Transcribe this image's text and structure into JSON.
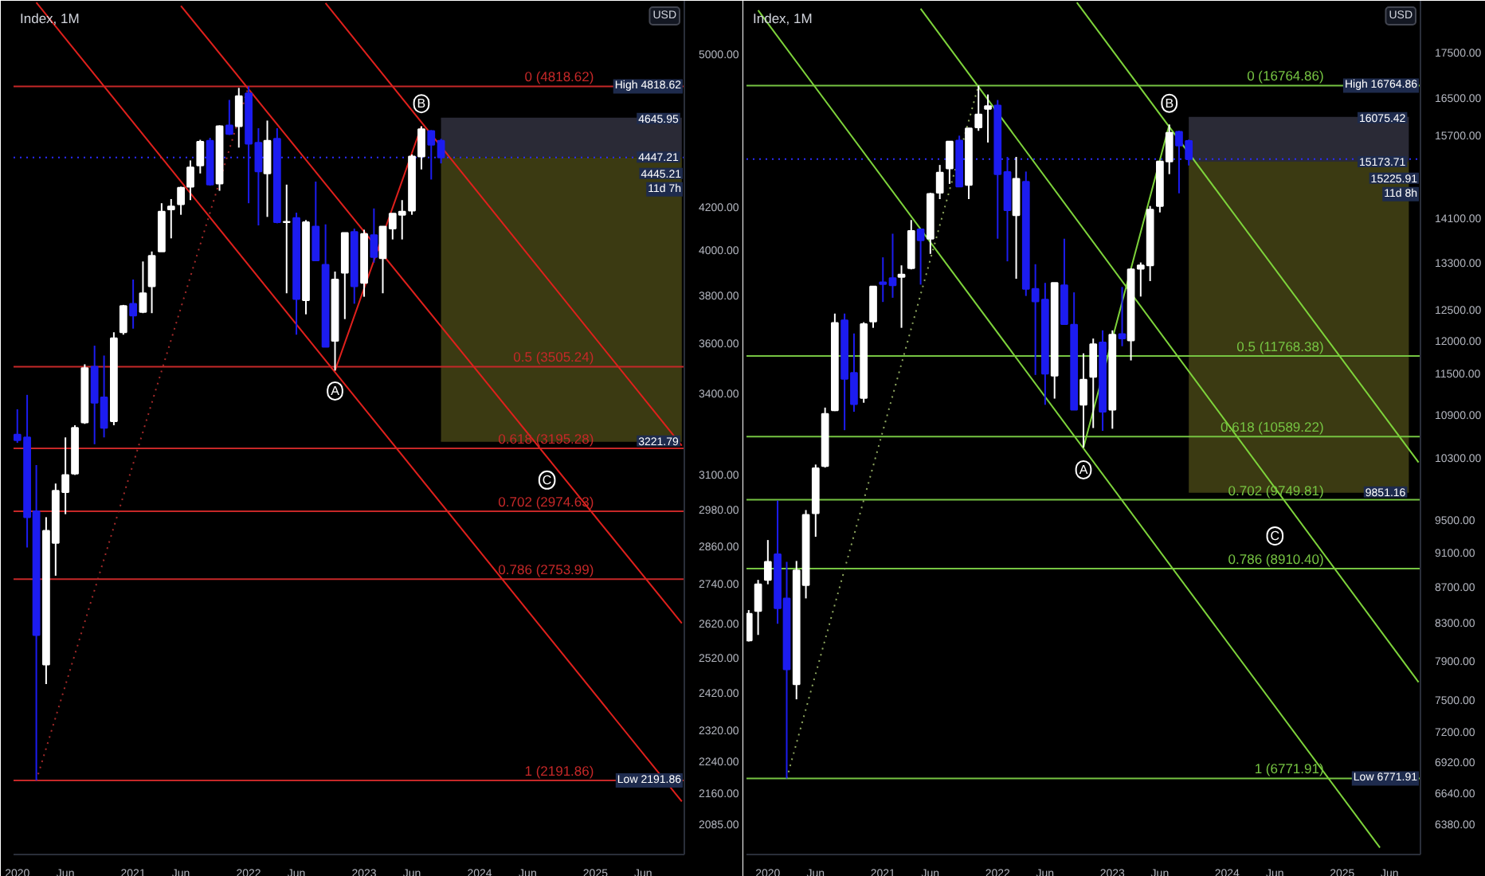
{
  "chart_data": [
    {
      "type": "candlestick",
      "title": "Index, 1M",
      "log": true,
      "xlim": [
        "2019-12-20",
        "2025-10-09"
      ],
      "ylim": [
        2015,
        5310
      ],
      "xticks": [
        "2020",
        {
          "value": "2020-06",
          "label": "Jun"
        },
        "2021",
        {
          "value": "2021-06",
          "label": "Jun"
        },
        "2022",
        {
          "value": "2022-06",
          "label": "Jun"
        },
        "2023",
        {
          "value": "2023-06",
          "label": "Jun"
        },
        "2024",
        {
          "value": "2024-06",
          "label": "Jun"
        },
        "2025",
        {
          "value": "2025-06",
          "label": "Jun"
        }
      ],
      "yticks": [
        {
          "value": 2085,
          "label": "2085.00"
        },
        {
          "value": 2160,
          "label": "2160.00"
        },
        {
          "value": 2240,
          "label": "2240.00"
        },
        {
          "value": 2320,
          "label": "2320.00"
        },
        {
          "value": 2420,
          "label": "2420.00"
        },
        {
          "value": 2520,
          "label": "2520.00"
        },
        {
          "value": 2620,
          "label": "2620.00"
        },
        {
          "value": 2740,
          "label": "2740.00"
        },
        {
          "value": 2860,
          "label": "2860.00"
        },
        {
          "value": 2980,
          "label": "2980.00"
        },
        {
          "value": 3100,
          "label": "3100.00"
        },
        {
          "value": 3400,
          "label": "3400.00"
        },
        {
          "value": 3600,
          "label": "3600.00"
        },
        {
          "value": 3800,
          "label": "3800.00"
        },
        {
          "value": 4000,
          "label": "4000.00"
        },
        {
          "value": 4200,
          "label": "4200.00"
        },
        {
          "value": 5000,
          "label": "5000.00"
        }
      ],
      "x": [
        "2020-01",
        "2020-02",
        "2020-03",
        "2020-04",
        "2020-05",
        "2020-06",
        "2020-07",
        "2020-08",
        "2020-09",
        "2020-10",
        "2020-11",
        "2020-12",
        "2021-01",
        "2021-02",
        "2021-03",
        "2021-04",
        "2021-05",
        "2021-06",
        "2021-07",
        "2021-08",
        "2021-09",
        "2021-10",
        "2021-11",
        "2021-12",
        "2022-01",
        "2022-02",
        "2022-03",
        "2022-04",
        "2022-05",
        "2022-06",
        "2022-07",
        "2022-08",
        "2022-09",
        "2022-10",
        "2022-11",
        "2022-12",
        "2023-01",
        "2023-02",
        "2023-03",
        "2023-04",
        "2023-05",
        "2023-06",
        "2023-07",
        "2023-08",
        "2023-09"
      ],
      "ohlc": [
        [
          3245,
          3340,
          3215,
          3225
        ],
        [
          3235,
          3395,
          2855,
          2955
        ],
        [
          2975,
          3135,
          2191.86,
          2585
        ],
        [
          2500,
          2955,
          2445,
          2910
        ],
        [
          2870,
          3070,
          2765,
          3045
        ],
        [
          3040,
          3235,
          2965,
          3100
        ],
        [
          3105,
          3280,
          3100,
          3270
        ],
        [
          3290,
          3515,
          3285,
          3500
        ],
        [
          3505,
          3590,
          3210,
          3365
        ],
        [
          3385,
          3550,
          3235,
          3270
        ],
        [
          3295,
          3645,
          3280,
          3620
        ],
        [
          3645,
          3760,
          3635,
          3755
        ],
        [
          3765,
          3870,
          3660,
          3715
        ],
        [
          3730,
          3950,
          3725,
          3810
        ],
        [
          3840,
          3995,
          3725,
          3975
        ],
        [
          3995,
          4220,
          3995,
          4180
        ],
        [
          4190,
          4240,
          4055,
          4205
        ],
        [
          4215,
          4300,
          4165,
          4295
        ],
        [
          4300,
          4430,
          4235,
          4395
        ],
        [
          4405,
          4535,
          4365,
          4525
        ],
        [
          4530,
          4545,
          4305,
          4310
        ],
        [
          4315,
          4610,
          4280,
          4605
        ],
        [
          4610,
          4745,
          4560,
          4565
        ],
        [
          4605,
          4810,
          4495,
          4765
        ],
        [
          4780,
          4818.62,
          4220,
          4515
        ],
        [
          4520,
          4595,
          4115,
          4375
        ],
        [
          4365,
          4635,
          4155,
          4530
        ],
        [
          4540,
          4595,
          4125,
          4130
        ],
        [
          4130,
          4310,
          3810,
          4132
        ],
        [
          4150,
          4175,
          3635,
          3785
        ],
        [
          3780,
          4140,
          3720,
          4130
        ],
        [
          4110,
          4325,
          3955,
          3955
        ],
        [
          3935,
          4120,
          3585,
          3585
        ],
        [
          3610,
          3905,
          3490,
          3870
        ],
        [
          3900,
          4080,
          3700,
          4080
        ],
        [
          4085,
          4100,
          3765,
          3840
        ],
        [
          3855,
          4095,
          3795,
          4075
        ],
        [
          4070,
          4195,
          3945,
          3970
        ],
        [
          3965,
          4110,
          3810,
          4110
        ],
        [
          4100,
          4170,
          4050,
          4170
        ],
        [
          4165,
          4235,
          4050,
          4180
        ],
        [
          4185,
          4460,
          4165,
          4450
        ],
        [
          4450,
          4605,
          4385,
          4590
        ],
        [
          4580,
          4585,
          4335,
          4510
        ],
        [
          4530,
          4540,
          4415,
          4445.21
        ]
      ],
      "colors": [
        "#1c1cf0",
        "#1c1cf0",
        "#1c1cf0",
        "#ffffff",
        "#ffffff",
        "#ffffff",
        "#ffffff",
        "#ffffff",
        "#1c1cf0",
        "#1c1cf0",
        "#ffffff",
        "#ffffff",
        "#1c1cf0",
        "#ffffff",
        "#ffffff",
        "#ffffff",
        "#ffffff",
        "#ffffff",
        "#ffffff",
        "#ffffff",
        "#1c1cf0",
        "#ffffff",
        "#1c1cf0",
        "#ffffff",
        "#1c1cf0",
        "#1c1cf0",
        "#ffffff",
        "#1c1cf0",
        "#ffffff",
        "#1c1cf0",
        "#ffffff",
        "#1c1cf0",
        "#1c1cf0",
        "#ffffff",
        "#ffffff",
        "#1c1cf0",
        "#ffffff",
        "#1c1cf0",
        "#ffffff",
        "#ffffff",
        "#ffffff",
        "#ffffff",
        "#ffffff",
        "#1c1cf0",
        "#1c1cf0"
      ],
      "series": [
        {
          "type": "line",
          "x": [
            "2023-09",
            "2025-10"
          ],
          "values": [
            4645.95,
            4645.95
          ],
          "lower": [
            4447.21,
            4447.21
          ],
          "upper": [
            4645.95,
            4645.95
          ],
          "color": "#2a2a36"
        },
        {
          "type": "line",
          "x": [
            "2023-09",
            "2025-10"
          ],
          "values": [
            3221.79,
            3221.79
          ],
          "lower": [
            3221.79,
            3221.79
          ],
          "upper": [
            4447.21,
            4447.21
          ],
          "color": "#3b3a12"
        },
        {
          "type": "line",
          "x": [
            "2020-03",
            "2022-01"
          ],
          "values": [
            2191.86,
            4818.62
          ],
          "color": "#a52a2a",
          "line_style": "dotted"
        },
        {
          "type": "line",
          "x": [
            "2020-03",
            "2025-10"
          ],
          "values": [
            5300,
            2140
          ],
          "color": "#e0201c"
        },
        {
          "type": "line",
          "x": [
            "2021-06",
            "2025-10"
          ],
          "values": [
            5280,
            2620
          ],
          "color": "#e0201c"
        },
        {
          "type": "line",
          "x": [
            "2022-09",
            "2025-10"
          ],
          "values": [
            5296,
            3205
          ],
          "color": "#e0201c"
        },
        {
          "type": "line",
          "x": [
            "2022-10",
            "2023-07"
          ],
          "values": [
            3490,
            4605
          ],
          "color": "#e0201c"
        }
      ],
      "ref_lines": [
        {
          "axis": "y",
          "value": 4818.62,
          "label": "0 (4818.62)",
          "color": "#c62828"
        },
        {
          "axis": "y",
          "value": 3505.24,
          "label": "0.5 (3505.24)",
          "color": "#c62828"
        },
        {
          "axis": "y",
          "value": 3195.28,
          "label": "0.618 (3195.28)",
          "color": "#c62828"
        },
        {
          "axis": "y",
          "value": 2974.63,
          "label": "0.702 (2974.63)",
          "color": "#c62828"
        },
        {
          "axis": "y",
          "value": 2753.99,
          "label": "0.786 (2753.99)",
          "color": "#c62828"
        },
        {
          "axis": "y",
          "value": 2191.86,
          "label": "1 (2191.86)",
          "color": "#c62828"
        },
        {
          "axis": "y",
          "value": 4445.21,
          "color": "#2b2bff",
          "line_style": "dotted"
        }
      ],
      "annotations": [
        "USD",
        {
          "text": "A",
          "x": "2022-10",
          "y": 3410
        },
        {
          "text": "B",
          "x": "2023-07",
          "y": 4725
        },
        {
          "text": "C",
          "x": "2024-08",
          "y": 3082
        },
        {
          "text": "High 4818.62",
          "x": "2025-10-09",
          "y": 4818.62
        },
        {
          "text": "4645.95",
          "x": "2025-10",
          "y": 4645.95
        },
        {
          "text": "4447.21",
          "x": "2025-10",
          "y": 4447.21
        },
        {
          "text": "4445.21",
          "x": "2025-10-09",
          "y": 4445.21
        },
        {
          "text": "11d 7h",
          "x": "2025-10-09",
          "y": 4445.21
        },
        {
          "text": "3221.79",
          "x": "2025-10",
          "y": 3221.79
        },
        {
          "text": "Low 2191.86",
          "x": "2025-10-09",
          "y": 2191.86
        }
      ]
    },
    {
      "type": "candlestick",
      "title": "Index, 1M",
      "log": true,
      "xlim": [
        "2019-10-25",
        "2025-09-07"
      ],
      "ylim": [
        6130,
        18730
      ],
      "xticks": [
        "2020",
        {
          "value": "2020-06",
          "label": "Jun"
        },
        "2021",
        {
          "value": "2021-06",
          "label": "Jun"
        },
        "2022",
        {
          "value": "2022-06",
          "label": "Jun"
        },
        "2023",
        {
          "value": "2023-06",
          "label": "Jun"
        },
        "2024",
        {
          "value": "2024-06",
          "label": "Jun"
        },
        "2025",
        {
          "value": "2025-06",
          "label": "Jun"
        }
      ],
      "yticks": [
        {
          "value": 6380,
          "label": "6380.00"
        },
        {
          "value": 6640,
          "label": "6640.00"
        },
        {
          "value": 6920,
          "label": "6920.00"
        },
        {
          "value": 7200,
          "label": "7200.00"
        },
        {
          "value": 7500,
          "label": "7500.00"
        },
        {
          "value": 7900,
          "label": "7900.00"
        },
        {
          "value": 8300,
          "label": "8300.00"
        },
        {
          "value": 8700,
          "label": "8700.00"
        },
        {
          "value": 9100,
          "label": "9100.00"
        },
        {
          "value": 9500,
          "label": "9500.00"
        },
        {
          "value": 10300,
          "label": "10300.00"
        },
        {
          "value": 10900,
          "label": "10900.00"
        },
        {
          "value": 11500,
          "label": "11500.00"
        },
        {
          "value": 12000,
          "label": "12000.00"
        },
        {
          "value": 12500,
          "label": "12500.00"
        },
        {
          "value": 13300,
          "label": "13300.00"
        },
        {
          "value": 14100,
          "label": "14100.00"
        },
        {
          "value": 15700,
          "label": "15700.00"
        },
        {
          "value": 16500,
          "label": "16500.00"
        },
        {
          "value": 17500,
          "label": "17500.00"
        }
      ],
      "x": [
        "2019-11",
        "2019-12",
        "2020-01",
        "2020-02",
        "2020-03",
        "2020-04",
        "2020-05",
        "2020-06",
        "2020-07",
        "2020-08",
        "2020-09",
        "2020-10",
        "2020-11",
        "2020-12",
        "2021-01",
        "2021-02",
        "2021-03",
        "2021-04",
        "2021-05",
        "2021-06",
        "2021-07",
        "2021-08",
        "2021-09",
        "2021-10",
        "2021-11",
        "2021-12",
        "2022-01",
        "2022-02",
        "2022-03",
        "2022-04",
        "2022-05",
        "2022-06",
        "2022-07",
        "2022-08",
        "2022-09",
        "2022-10",
        "2022-11",
        "2022-12",
        "2023-01",
        "2023-02",
        "2023-03",
        "2023-04",
        "2023-05",
        "2023-06",
        "2023-07",
        "2023-08",
        "2023-09"
      ],
      "ohlc": [
        [
          8110,
          8440,
          8100,
          8400
        ],
        [
          8430,
          8780,
          8170,
          8730
        ],
        [
          8780,
          9250,
          8730,
          8990
        ],
        [
          9080,
          9740,
          8290,
          8460
        ],
        [
          8570,
          8990,
          6771.91,
          7810
        ],
        [
          7660,
          9000,
          7510,
          8890
        ],
        [
          8720,
          9620,
          8570,
          9560
        ],
        [
          9580,
          10210,
          9290,
          10160
        ],
        [
          10190,
          11000,
          10170,
          10910
        ],
        [
          10960,
          12440,
          10950,
          12290
        ],
        [
          12330,
          12440,
          10680,
          11420
        ],
        [
          11510,
          12120,
          10940,
          11050
        ],
        [
          11140,
          12300,
          11070,
          12270
        ],
        [
          12310,
          12890,
          12210,
          12890
        ],
        [
          12960,
          13390,
          12630,
          12930
        ],
        [
          13030,
          13810,
          12700,
          12910
        ],
        [
          13050,
          13250,
          12210,
          13090
        ],
        [
          13200,
          14060,
          13180,
          13860
        ],
        [
          13890,
          13890,
          12920,
          13690
        ],
        [
          13720,
          14570,
          13450,
          14550
        ],
        [
          14570,
          15110,
          14450,
          14960
        ],
        [
          15040,
          15590,
          14740,
          15580
        ],
        [
          15600,
          15700,
          14680,
          14690
        ],
        [
          14720,
          15860,
          14450,
          15850
        ],
        [
          15870,
          16764.86,
          15800,
          16140
        ],
        [
          16260,
          16570,
          15560,
          16320
        ],
        [
          16330,
          16450,
          13720,
          14930
        ],
        [
          14970,
          15270,
          13320,
          14240
        ],
        [
          14150,
          15270,
          13020,
          14840
        ],
        [
          14780,
          14980,
          12730,
          12850
        ],
        [
          12850,
          13270,
          11480,
          12640
        ],
        [
          12670,
          12950,
          11040,
          11500
        ],
        [
          11470,
          12950,
          11130,
          12950
        ],
        [
          12910,
          13720,
          12260,
          12270
        ],
        [
          12260,
          12790,
          10970,
          10970
        ],
        [
          11040,
          11810,
          10440,
          11410
        ],
        [
          11450,
          12040,
          10710,
          11950
        ],
        [
          11980,
          12170,
          10670,
          10940
        ],
        [
          10970,
          12170,
          10700,
          12100
        ],
        [
          12110,
          12880,
          11920,
          12040
        ],
        [
          12010,
          13200,
          11700,
          13180
        ],
        [
          13190,
          13300,
          12720,
          13250
        ],
        [
          13250,
          14320,
          12980,
          14250
        ],
        [
          14320,
          15190,
          14200,
          15180
        ],
        [
          15180,
          15930,
          14930,
          15760
        ],
        [
          15780,
          15800,
          14560,
          15500
        ],
        [
          15590,
          15620,
          15100,
          15225.91
        ]
      ],
      "colors": [
        "#ffffff",
        "#ffffff",
        "#ffffff",
        "#1c1cf0",
        "#1c1cf0",
        "#ffffff",
        "#ffffff",
        "#ffffff",
        "#ffffff",
        "#ffffff",
        "#1c1cf0",
        "#1c1cf0",
        "#ffffff",
        "#ffffff",
        "#1c1cf0",
        "#1c1cf0",
        "#ffffff",
        "#ffffff",
        "#1c1cf0",
        "#ffffff",
        "#ffffff",
        "#ffffff",
        "#1c1cf0",
        "#ffffff",
        "#ffffff",
        "#ffffff",
        "#1c1cf0",
        "#1c1cf0",
        "#ffffff",
        "#1c1cf0",
        "#1c1cf0",
        "#1c1cf0",
        "#ffffff",
        "#1c1cf0",
        "#1c1cf0",
        "#ffffff",
        "#ffffff",
        "#1c1cf0",
        "#ffffff",
        "#1c1cf0",
        "#ffffff",
        "#ffffff",
        "#ffffff",
        "#ffffff",
        "#ffffff",
        "#1c1cf0",
        "#1c1cf0"
      ],
      "series": [
        {
          "type": "line",
          "x": [
            "2023-09",
            "2025-08"
          ],
          "values": [
            16075.42,
            16075.42
          ],
          "lower": [
            15173.71,
            15173.71
          ],
          "upper": [
            16075.42,
            16075.42
          ],
          "color": "#2a2a36"
        },
        {
          "type": "line",
          "x": [
            "2023-09",
            "2025-08"
          ],
          "values": [
            9851.16,
            9851.16
          ],
          "lower": [
            9851.16,
            9851.16
          ],
          "upper": [
            15173.71,
            15173.71
          ],
          "color": "#3b3a12"
        },
        {
          "type": "line",
          "x": [
            "2020-03",
            "2021-11"
          ],
          "values": [
            6771.91,
            16764.86
          ],
          "color": "#8fa860",
          "line_style": "dotted"
        },
        {
          "type": "line",
          "x": [
            "2019-12",
            "2025-05"
          ],
          "values": [
            18500,
            6185
          ],
          "color": "#7ed43b"
        },
        {
          "type": "line",
          "x": [
            "2021-05",
            "2025-09"
          ],
          "values": [
            18540,
            7680
          ],
          "color": "#7ed43b"
        },
        {
          "type": "line",
          "x": [
            "2022-09-10",
            "2025-09"
          ],
          "values": [
            18690,
            10240
          ],
          "color": "#7ed43b"
        },
        {
          "type": "line",
          "x": [
            "2022-10",
            "2023-07"
          ],
          "values": [
            10440,
            15930
          ],
          "color": "#7ed43b"
        }
      ],
      "ref_lines": [
        {
          "axis": "y",
          "value": 16764.86,
          "label": "0 (16764.86)",
          "color": "#76c442"
        },
        {
          "axis": "y",
          "value": 11768.38,
          "label": "0.5 (11768.38)",
          "color": "#76c442"
        },
        {
          "axis": "y",
          "value": 10589.22,
          "label": "0.618 (10589.22)",
          "color": "#76c442"
        },
        {
          "axis": "y",
          "value": 9749.81,
          "label": "0.702 (9749.81)",
          "color": "#76c442"
        },
        {
          "axis": "y",
          "value": 8910.4,
          "label": "0.786 (8910.40)",
          "color": "#76c442"
        },
        {
          "axis": "y",
          "value": 6771.91,
          "label": "1 (6771.91)",
          "color": "#76c442"
        },
        {
          "axis": "y",
          "value": 15225.91,
          "color": "#2b2bff",
          "line_style": "dotted"
        }
      ],
      "annotations": [
        "USD",
        {
          "text": "A",
          "x": "2022-10",
          "y": 10140
        },
        {
          "text": "B",
          "x": "2023-07",
          "y": 16380
        },
        {
          "text": "C",
          "x": "2024-06",
          "y": 9300
        },
        {
          "text": "High 16764.86",
          "x": "2025-09-07",
          "y": 16764.86
        },
        {
          "text": "16075.42",
          "x": "2025-08",
          "y": 16075.42
        },
        {
          "text": "15225.91",
          "x": "2025-09-07",
          "y": 15225.91
        },
        {
          "text": "11d 8h",
          "x": "2025-09-07",
          "y": 15225.91
        },
        {
          "text": "15173.71",
          "x": "2025-08",
          "y": 15173.71
        },
        {
          "text": "9851.16",
          "x": "2025-08",
          "y": 9851.16
        },
        {
          "text": "Low 6771.91",
          "x": "2025-09-07",
          "y": 6771.91
        }
      ]
    }
  ]
}
